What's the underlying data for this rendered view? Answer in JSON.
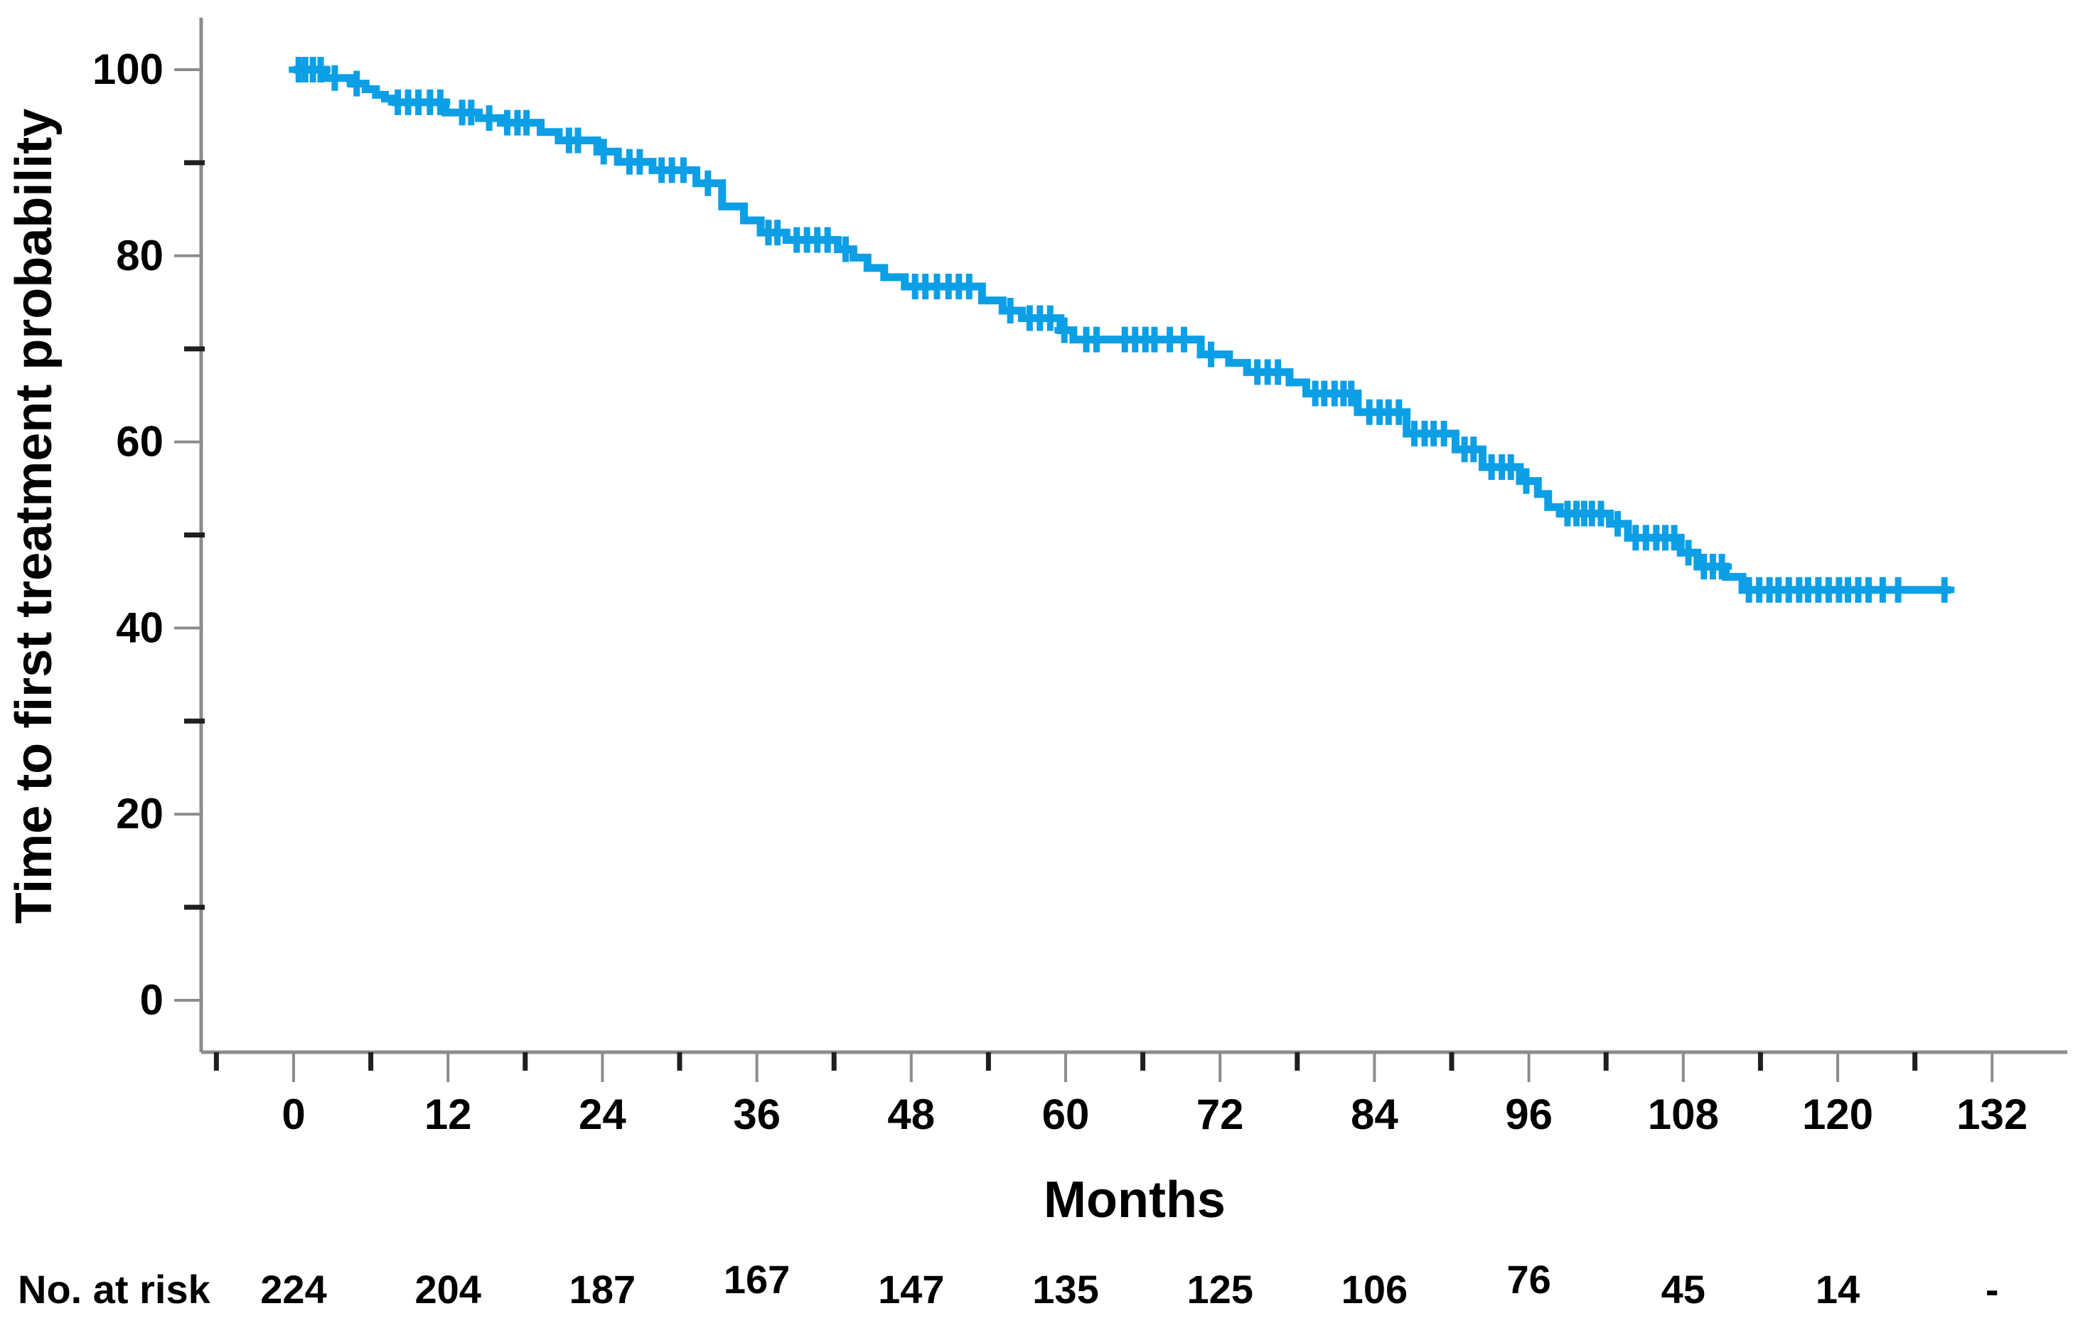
{
  "figure": {
    "background": "#ffffff"
  },
  "chart_data": {
    "type": "line",
    "subtype": "kaplan-meier-step",
    "title": "",
    "xlabel": "Months",
    "ylabel": "Time to first treatment probability",
    "grid": false,
    "legend": "none",
    "xlim": [
      -7,
      138
    ],
    "ylim": [
      -5,
      105
    ],
    "x_ticks": [
      0,
      12,
      24,
      36,
      48,
      60,
      72,
      84,
      96,
      108,
      120,
      132
    ],
    "x_minor_ticks": [
      -6,
      6,
      18,
      30,
      42,
      54,
      66,
      78,
      90,
      102,
      114,
      126
    ],
    "y_ticks": [
      0,
      20,
      40,
      60,
      80,
      100
    ],
    "y_minor_ticks": [
      10,
      30,
      50,
      70,
      90
    ],
    "axis_color": "#8c8c8c",
    "minor_tick_color": "#1f1f1f",
    "text_color": "#000000",
    "series": [
      {
        "name": "Time to first treatment probability",
        "color": "#0C9FE5",
        "curve_end_month": 128.8,
        "steps": [
          [
            0,
            100
          ],
          [
            2.5,
            99.1
          ],
          [
            4.5,
            98.5
          ],
          [
            5.6,
            97.9
          ],
          [
            6.4,
            97.3
          ],
          [
            7.1,
            96.9
          ],
          [
            7.9,
            96.5
          ],
          [
            11.8,
            95.4
          ],
          [
            14.4,
            94.8
          ],
          [
            16.1,
            94.3
          ],
          [
            19.2,
            93.3
          ],
          [
            20.6,
            92.4
          ],
          [
            23.6,
            91.2
          ],
          [
            25.2,
            90.1
          ],
          [
            27.9,
            89.2
          ],
          [
            31.3,
            87.8
          ],
          [
            33.3,
            85.3
          ],
          [
            35,
            83.8
          ],
          [
            36.3,
            82.5
          ],
          [
            38.3,
            81.7
          ],
          [
            42.3,
            80.7
          ],
          [
            43.5,
            79.8
          ],
          [
            44.6,
            78.7
          ],
          [
            45.9,
            77.7
          ],
          [
            47.5,
            76.7
          ],
          [
            53.5,
            75.2
          ],
          [
            55.1,
            74.1
          ],
          [
            56.6,
            73.3
          ],
          [
            59.6,
            72
          ],
          [
            60.6,
            71
          ],
          [
            70.5,
            69.4
          ],
          [
            72.7,
            68.5
          ],
          [
            74.1,
            67.5
          ],
          [
            77.4,
            66.4
          ],
          [
            78.7,
            65.2
          ],
          [
            82.7,
            63.2
          ],
          [
            86.5,
            60.9
          ],
          [
            90.3,
            59.2
          ],
          [
            92.4,
            57.3
          ],
          [
            95.3,
            55.8
          ],
          [
            96.7,
            54.4
          ],
          [
            97.5,
            53
          ],
          [
            98.4,
            52.3
          ],
          [
            102.3,
            51.2
          ],
          [
            103.7,
            49.7
          ],
          [
            107.8,
            48.1
          ],
          [
            109.1,
            46.6
          ],
          [
            111.3,
            45.5
          ],
          [
            112.6,
            44.1
          ],
          [
            128.8,
            44.1
          ]
        ],
        "censors": [
          [
            0.4,
            100
          ],
          [
            0.9,
            100
          ],
          [
            1.5,
            100
          ],
          [
            2.1,
            100
          ],
          [
            3.2,
            99.1
          ],
          [
            4.9,
            98.5
          ],
          [
            8.1,
            96.5
          ],
          [
            8.9,
            96.5
          ],
          [
            9.7,
            96.5
          ],
          [
            10.6,
            96.5
          ],
          [
            11.4,
            96.5
          ],
          [
            13.1,
            95.4
          ],
          [
            13.8,
            95.4
          ],
          [
            15.2,
            94.8
          ],
          [
            16.6,
            94.3
          ],
          [
            17.4,
            94.3
          ],
          [
            18.1,
            94.3
          ],
          [
            21.4,
            92.4
          ],
          [
            22.1,
            92.4
          ],
          [
            24.1,
            91.2
          ],
          [
            26.1,
            90.1
          ],
          [
            26.9,
            90.1
          ],
          [
            28.6,
            89.2
          ],
          [
            29.4,
            89.2
          ],
          [
            30.3,
            89.2
          ],
          [
            32.2,
            87.8
          ],
          [
            36.9,
            82.5
          ],
          [
            37.6,
            82.5
          ],
          [
            39.1,
            81.7
          ],
          [
            39.9,
            81.7
          ],
          [
            40.7,
            81.7
          ],
          [
            41.5,
            81.7
          ],
          [
            42.9,
            80.7
          ],
          [
            48.3,
            76.7
          ],
          [
            49.1,
            76.7
          ],
          [
            50,
            76.7
          ],
          [
            50.9,
            76.7
          ],
          [
            51.7,
            76.7
          ],
          [
            52.5,
            76.7
          ],
          [
            55.7,
            74.1
          ],
          [
            57.2,
            73.3
          ],
          [
            58,
            73.3
          ],
          [
            58.8,
            73.3
          ],
          [
            59.9,
            72
          ],
          [
            61.6,
            71
          ],
          [
            62.4,
            71
          ],
          [
            64.6,
            71
          ],
          [
            65.4,
            71
          ],
          [
            66.2,
            71
          ],
          [
            66.9,
            71
          ],
          [
            68.1,
            71
          ],
          [
            69.2,
            71
          ],
          [
            71.3,
            69.4
          ],
          [
            74.9,
            67.5
          ],
          [
            75.7,
            67.5
          ],
          [
            76.5,
            67.5
          ],
          [
            79.4,
            65.2
          ],
          [
            80.1,
            65.2
          ],
          [
            80.9,
            65.2
          ],
          [
            81.6,
            65.2
          ],
          [
            82.2,
            65.2
          ],
          [
            83.6,
            63.2
          ],
          [
            84.4,
            63.2
          ],
          [
            85.1,
            63.2
          ],
          [
            85.9,
            63.2
          ],
          [
            87.1,
            60.9
          ],
          [
            87.9,
            60.9
          ],
          [
            88.6,
            60.9
          ],
          [
            89.4,
            60.9
          ],
          [
            91,
            59.2
          ],
          [
            91.7,
            59.2
          ],
          [
            93.1,
            57.3
          ],
          [
            93.9,
            57.3
          ],
          [
            94.6,
            57.3
          ],
          [
            95.8,
            55.8
          ],
          [
            99,
            52.3
          ],
          [
            99.7,
            52.3
          ],
          [
            100.3,
            52.3
          ],
          [
            100.9,
            52.3
          ],
          [
            101.6,
            52.3
          ],
          [
            102.9,
            51.2
          ],
          [
            104.3,
            49.7
          ],
          [
            105.1,
            49.7
          ],
          [
            105.9,
            49.7
          ],
          [
            106.6,
            49.7
          ],
          [
            107.3,
            49.7
          ],
          [
            108.4,
            48.1
          ],
          [
            109.6,
            46.6
          ],
          [
            110.3,
            46.6
          ],
          [
            111,
            46.6
          ],
          [
            113.1,
            44.1
          ],
          [
            113.9,
            44.1
          ],
          [
            114.7,
            44.1
          ],
          [
            115.4,
            44.1
          ],
          [
            116.2,
            44.1
          ],
          [
            117,
            44.1
          ],
          [
            117.7,
            44.1
          ],
          [
            118.5,
            44.1
          ],
          [
            119.3,
            44.1
          ],
          [
            120.1,
            44.1
          ],
          [
            120.8,
            44.1
          ],
          [
            121.6,
            44.1
          ],
          [
            122.4,
            44.1
          ],
          [
            123.5,
            44.1
          ],
          [
            124.7,
            44.1
          ],
          [
            128.3,
            44.1
          ]
        ]
      }
    ],
    "at_risk": {
      "label": "No. at risk",
      "times": [
        0,
        12,
        24,
        36,
        48,
        60,
        72,
        84,
        96,
        108,
        120,
        132
      ],
      "values": [
        "224",
        "204",
        "187",
        "167",
        "147",
        "135",
        "125",
        "106",
        "76",
        "45",
        "14",
        "-"
      ],
      "y_offsets": [
        0,
        0,
        0,
        -14,
        0,
        0,
        0,
        0,
        -14,
        0,
        0,
        0
      ]
    }
  }
}
